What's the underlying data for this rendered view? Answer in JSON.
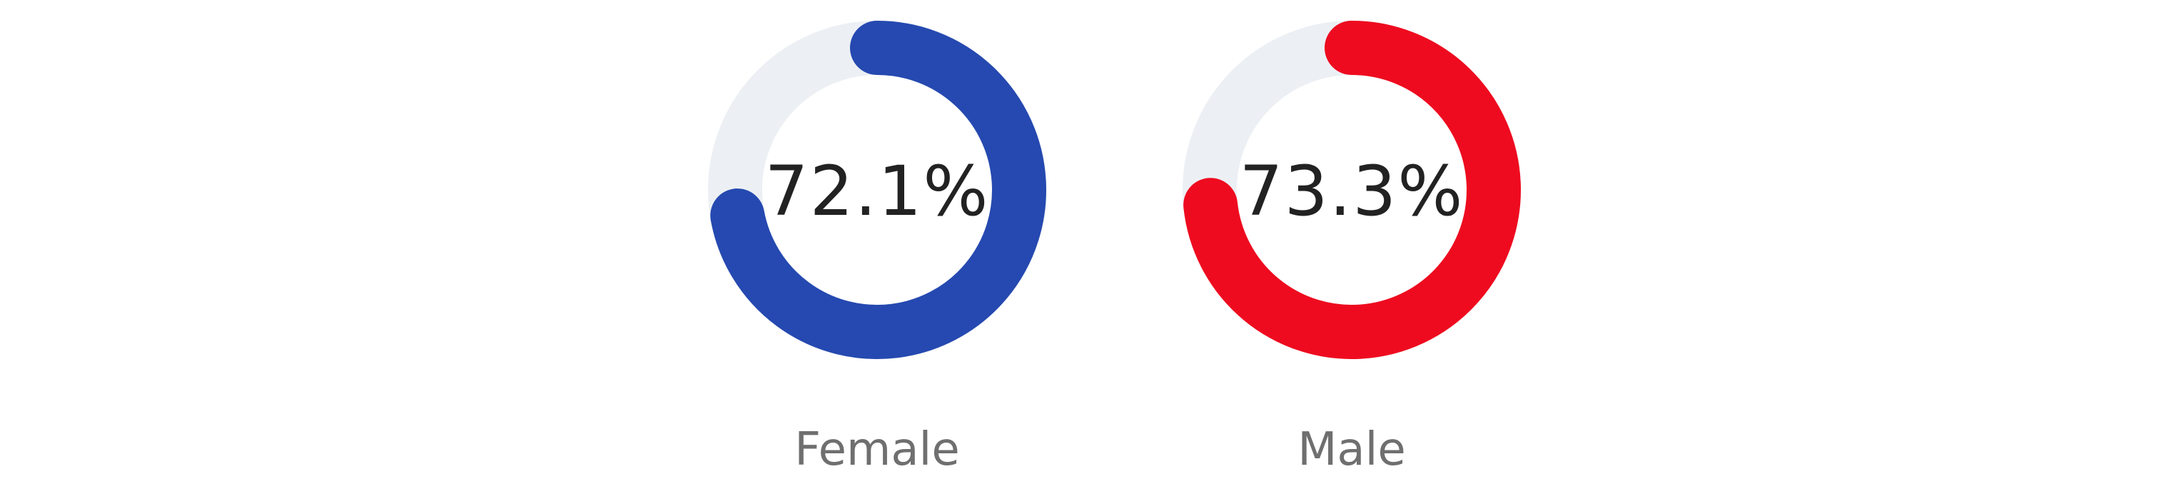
{
  "chart_data": [
    {
      "type": "donut",
      "category": "Female",
      "value": 72.1,
      "value_label": "72.1%",
      "color": "#2549b0",
      "track_color": "#ecf0f4",
      "max": 100
    },
    {
      "type": "donut",
      "category": "Male",
      "value": 73.3,
      "value_label": "73.3%",
      "color": "#ee0b1f",
      "track_color": "#ecf0f4",
      "max": 100
    }
  ]
}
